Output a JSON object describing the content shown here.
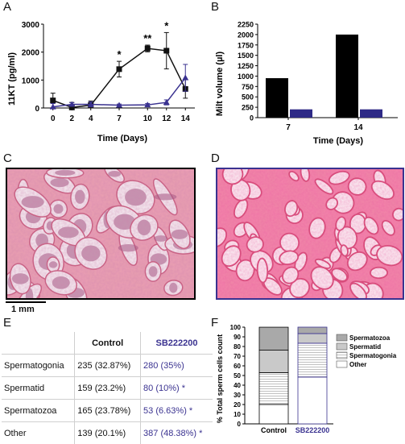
{
  "panels": {
    "a": "A",
    "b": "B",
    "c": "C",
    "d": "D",
    "e": "E",
    "f": "F"
  },
  "chart_data": [
    {
      "type": "line",
      "panel": "A",
      "xlabel": "Time (Days)",
      "ylabel": "11KT (pg/ml)",
      "x": [
        0,
        2,
        4,
        7,
        10,
        12,
        14
      ],
      "xticks": [
        "0",
        "2",
        "4",
        "7",
        "10",
        "12",
        "14"
      ],
      "yticks": [
        "0",
        "1000",
        "2000",
        "3000"
      ],
      "ylim": [
        0,
        3000
      ],
      "series": [
        {
          "color": "#111111",
          "marker": "square",
          "values": [
            270,
            20,
            100,
            1390,
            2130,
            2050,
            680
          ],
          "errors": [
            260,
            180,
            150,
            280,
            120,
            650,
            330
          ]
        },
        {
          "color": "#3a3290",
          "marker": "triangle",
          "values": [
            40,
            130,
            130,
            100,
            110,
            200,
            1080
          ],
          "errors": [
            120,
            60,
            90,
            40,
            50,
            90,
            480
          ]
        }
      ],
      "annotations": [
        {
          "x": 7,
          "text": "*"
        },
        {
          "x": 10,
          "text": "**"
        },
        {
          "x": 12,
          "text": "*"
        }
      ]
    },
    {
      "type": "bar",
      "panel": "B",
      "xlabel": "Time (Days)",
      "ylabel": "Milt volume (µl)",
      "categories": [
        "7",
        "14"
      ],
      "yticks": [
        "0",
        "250",
        "500",
        "750",
        "1000",
        "1250",
        "1500",
        "1750",
        "2000",
        "2250"
      ],
      "ylim": [
        0,
        2250
      ],
      "series": [
        {
          "color": "#000000",
          "values": [
            950,
            2000
          ]
        },
        {
          "color": "#2e2a86",
          "values": [
            200,
            200
          ]
        }
      ]
    },
    {
      "type": "bar",
      "panel": "F",
      "stacked": true,
      "ylabel": "% Total sperm cells count",
      "categories": [
        "Control",
        "SB222200"
      ],
      "yticks": [
        "0",
        "10",
        "20",
        "30",
        "40",
        "50",
        "60",
        "70",
        "80",
        "90",
        "100"
      ],
      "ylim": [
        0,
        100
      ],
      "legend": [
        "Spermatozoa",
        "Spermatid",
        "Spermatogonia",
        "Other"
      ],
      "legend_position": "right",
      "series": [
        {
          "name": "Other",
          "values": [
            20.1,
            48.38
          ]
        },
        {
          "name": "Spermatogonia",
          "values": [
            32.87,
            35
          ]
        },
        {
          "name": "Spermatid",
          "values": [
            23.2,
            10
          ]
        },
        {
          "name": "Spermatozoa",
          "values": [
            23.78,
            6.63
          ]
        }
      ]
    }
  ],
  "scale_bar": "1 mm",
  "table": {
    "headers": [
      "",
      "Control",
      "SB222200"
    ],
    "rows": [
      {
        "label": "Spermatogonia",
        "control": "235 (32.87%)",
        "sb": "280 (35%)"
      },
      {
        "label": "Spermatid",
        "control": "159 (23.2%)",
        "sb": "80 (10%) *"
      },
      {
        "label": "Spermatozoa",
        "control": "165 (23.78%)",
        "sb": "53 (6.63%) *"
      },
      {
        "label": "Other",
        "control": "139 (20.1%)",
        "sb": "387 (48.38%) *"
      }
    ]
  }
}
